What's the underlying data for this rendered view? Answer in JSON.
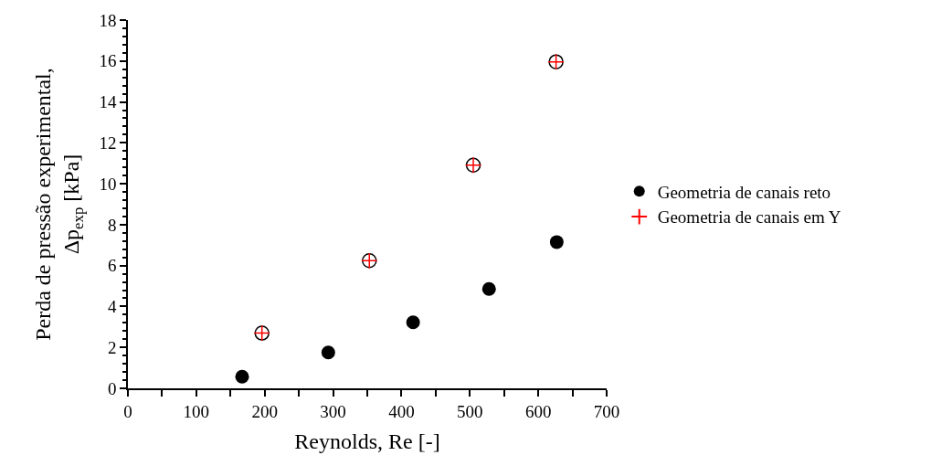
{
  "chart_data": {
    "type": "scatter",
    "xlabel": "Reynolds, Re [-]",
    "ylabel": "Perda de pressão experimental,\nΔp$_{exp}$ [kPa]",
    "xlim": [
      0,
      700
    ],
    "xticks": [
      0,
      100,
      200,
      300,
      400,
      500,
      600,
      700
    ],
    "ylim": [
      0,
      18
    ],
    "yticks": [
      0,
      2,
      4,
      6,
      8,
      10,
      12,
      14,
      16,
      18
    ],
    "legend": "right",
    "marker": "circle",
    "series": [
      {
        "name": "Geometria de canais reto",
        "color": "#000000",
        "x": [
          167,
          293,
          417,
          528,
          627
        ],
        "values": [
          0.57,
          1.75,
          3.23,
          4.86,
          7.15
        ]
      },
      {
        "name": "Geometria de canais em Y",
        "color": "#ff0000",
        "marker": "cross",
        "x": [
          196,
          353,
          505,
          626
        ],
        "values": [
          2.7,
          6.24,
          10.91,
          15.96
        ]
      }
    ]
  }
}
